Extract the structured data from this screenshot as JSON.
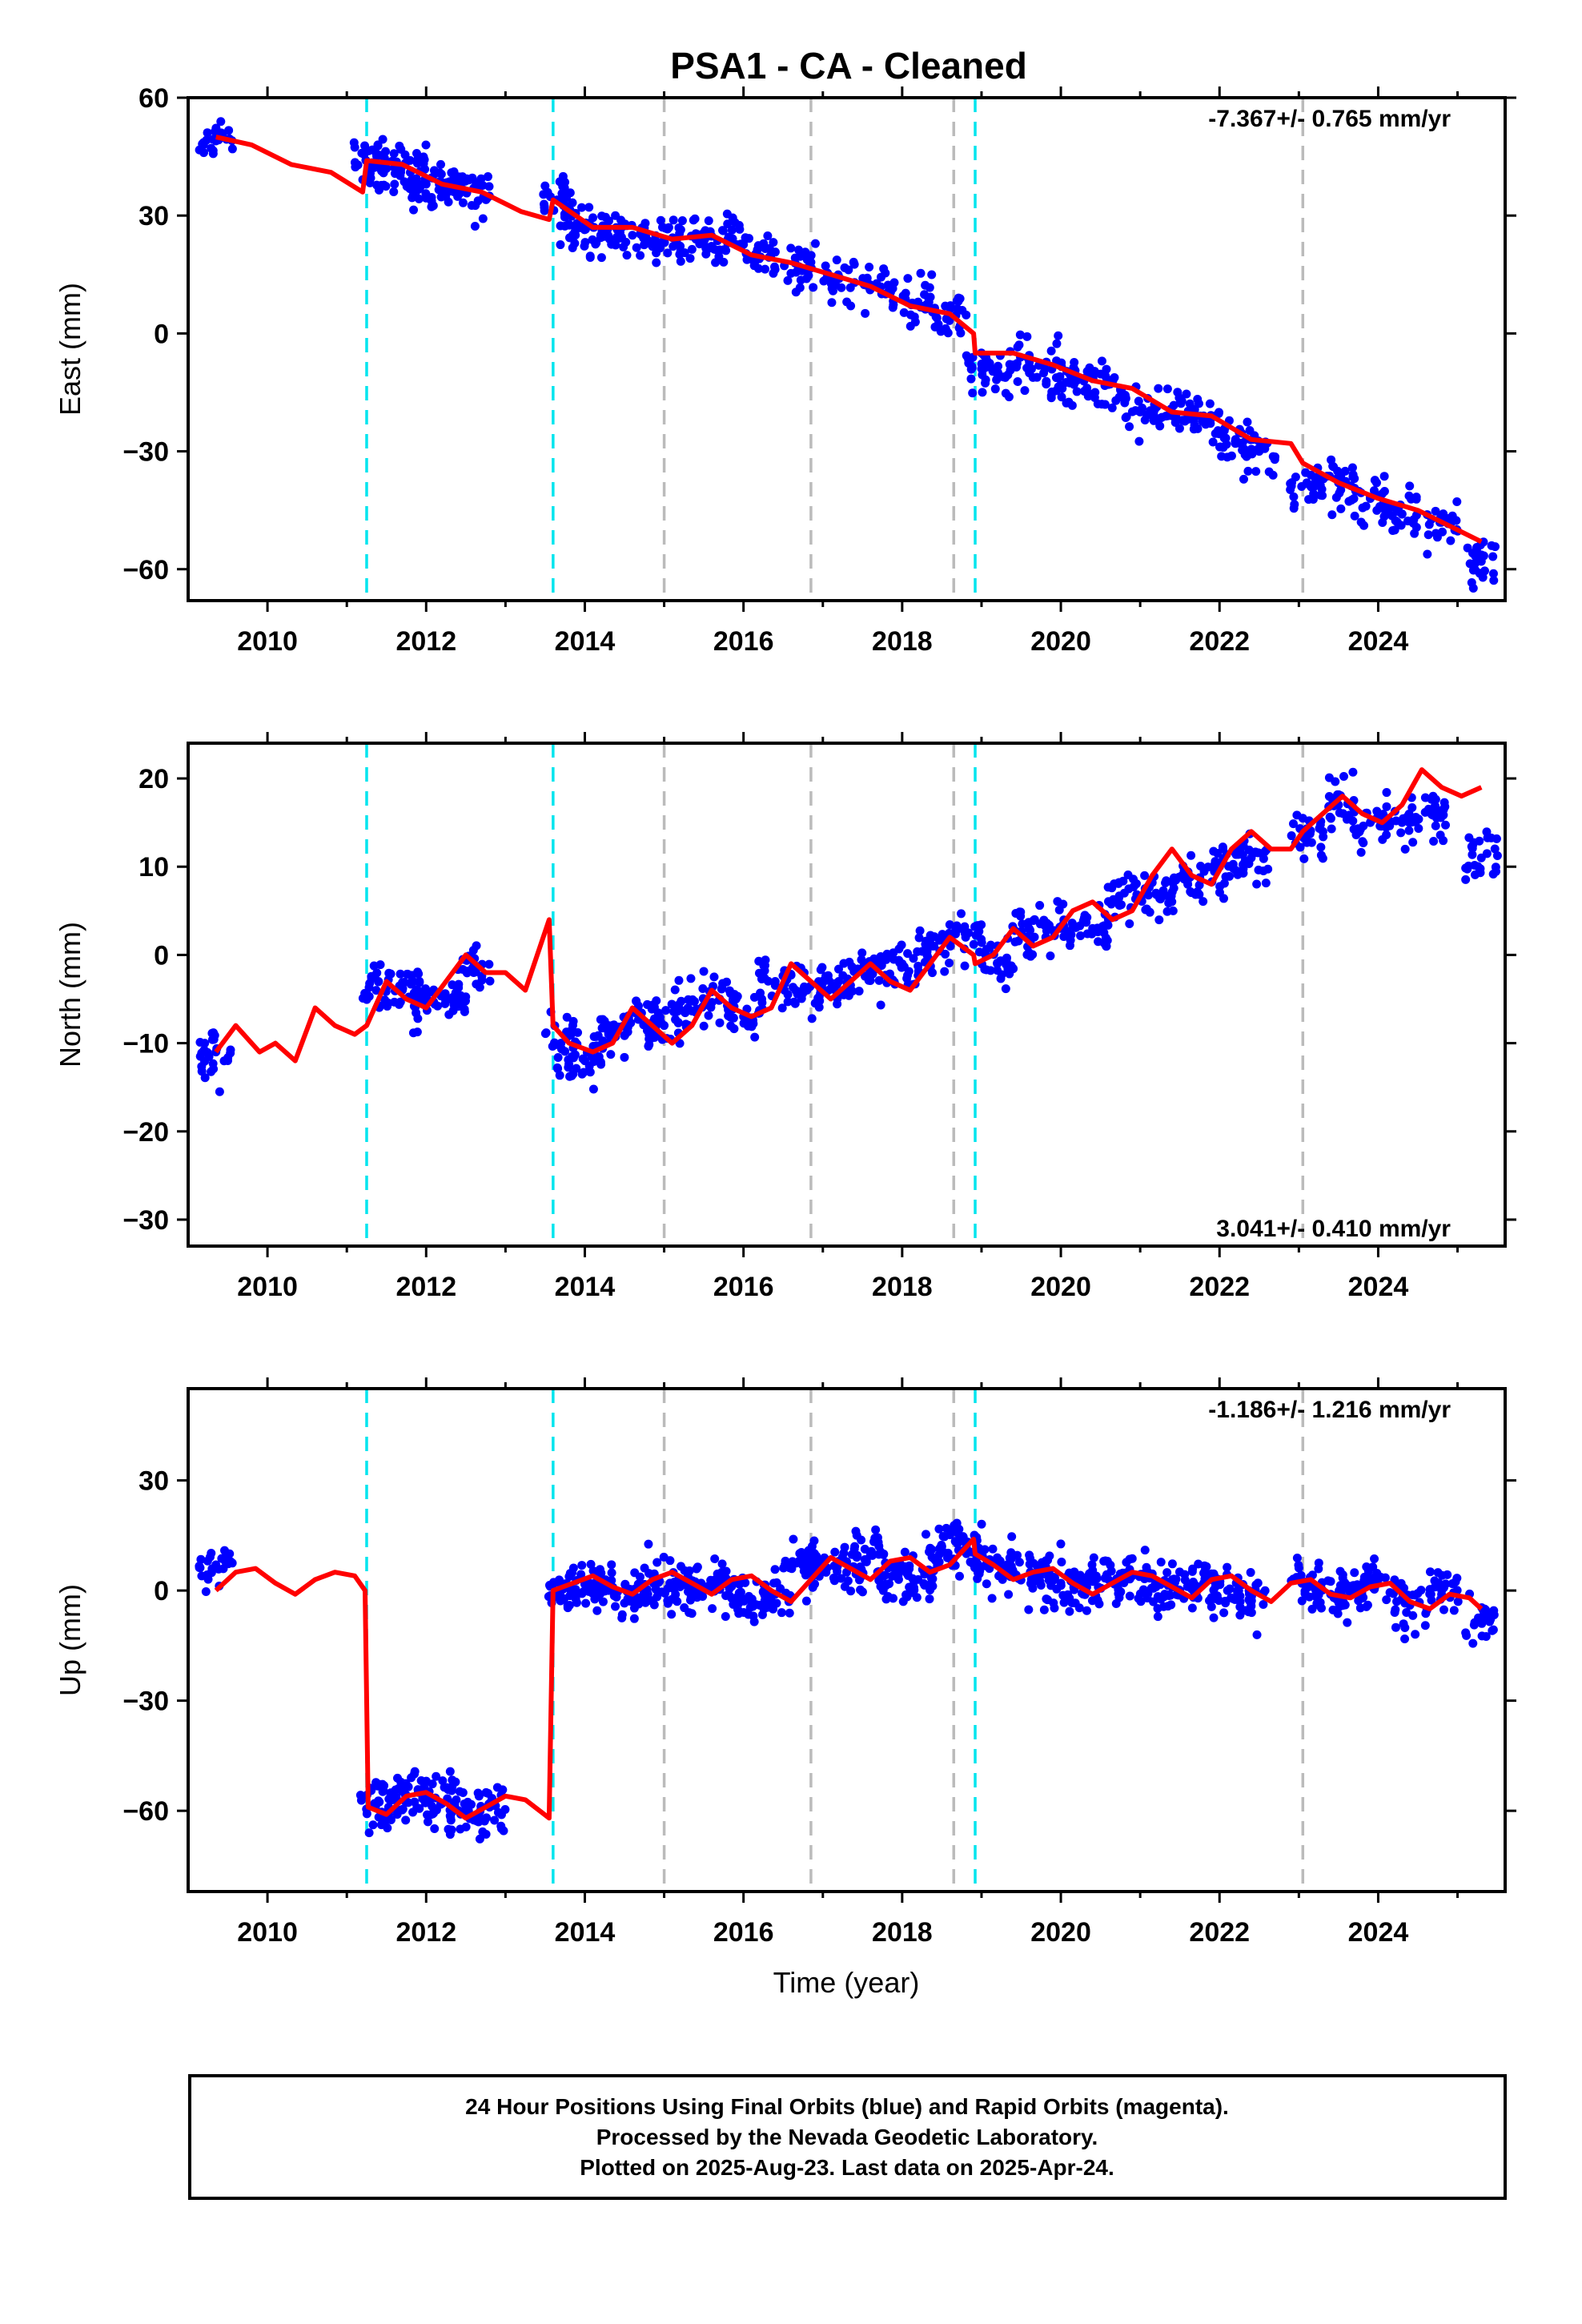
{
  "title": "PSA1  - CA - Cleaned",
  "xlabel": "Time (year)",
  "x_ticks": [
    2010,
    2012,
    2014,
    2016,
    2018,
    2020,
    2022,
    2024
  ],
  "xlim": [
    2009.0,
    2025.6
  ],
  "offsets": {
    "cyan": [
      2011.25,
      2013.6,
      2018.92
    ],
    "gray": [
      2015.0,
      2016.85,
      2018.65,
      2023.05
    ]
  },
  "colors": {
    "points": "#0000ff",
    "model": "#ff0000",
    "equipment_offset": "#00e5ee",
    "other_offset": "#bbbbbb"
  },
  "chart_data": [
    {
      "type": "scatter",
      "component": "east",
      "ylabel": "East (mm)",
      "ylim": [
        -68,
        60
      ],
      "y_ticks": [
        60,
        30,
        0,
        -30,
        -60
      ],
      "rate_text": "-7.367+/- 0.765 mm/yr",
      "rate_position": "top-right",
      "series": [
        {
          "kind": "points",
          "x": [
            2009.35,
            2011.3,
            2011.5,
            2011.8,
            2012.0,
            2012.3,
            2012.6,
            2013.65,
            2013.9,
            2014.2,
            2014.6,
            2015.0,
            2015.4,
            2015.8,
            2016.2,
            2016.7,
            2017.2,
            2017.7,
            2018.2,
            2018.6,
            2019.0,
            2019.4,
            2019.8,
            2020.2,
            2020.6,
            2021.0,
            2021.4,
            2021.8,
            2022.2,
            2022.5,
            2023.1,
            2023.5,
            2023.9,
            2024.3,
            2024.8,
            2025.3
          ],
          "y": [
            49,
            43,
            42,
            41,
            38,
            38,
            37,
            34,
            28,
            25,
            25,
            24,
            24,
            23,
            19,
            17,
            14,
            12,
            8,
            4,
            -9,
            -8,
            -9,
            -12,
            -13,
            -20,
            -20,
            -21,
            -28,
            -30,
            -38,
            -38,
            -42,
            -46,
            -48,
            -58
          ]
        },
        {
          "kind": "model",
          "x": [
            2009.35,
            2009.8,
            2010.3,
            2010.8,
            2011.2,
            2011.25,
            2011.7,
            2012.2,
            2012.7,
            2013.2,
            2013.55,
            2013.6,
            2014.1,
            2014.6,
            2015.1,
            2015.6,
            2016.1,
            2016.6,
            2017.1,
            2017.6,
            2018.1,
            2018.6,
            2018.9,
            2018.92,
            2019.4,
            2019.9,
            2020.4,
            2020.9,
            2021.4,
            2021.9,
            2022.4,
            2022.9,
            2023.05,
            2023.5,
            2024.0,
            2024.5,
            2025.0,
            2025.3
          ],
          "y": [
            50,
            48,
            43,
            41,
            36,
            44,
            43,
            38,
            36,
            31,
            29,
            34,
            27,
            27,
            24,
            25,
            20,
            18,
            15,
            12,
            7,
            5,
            0,
            -5,
            -5,
            -8,
            -12,
            -14,
            -20,
            -21,
            -27,
            -28,
            -33,
            -38,
            -42,
            -45,
            -50,
            -53
          ]
        }
      ]
    },
    {
      "type": "scatter",
      "component": "north",
      "ylabel": "North (mm)",
      "ylim": [
        -33,
        24
      ],
      "y_ticks": [
        20,
        10,
        0,
        -10,
        -20,
        -30
      ],
      "rate_text": "3.041+/- 0.410 mm/yr",
      "rate_position": "bottom-right",
      "series": [
        {
          "kind": "points",
          "x": [
            2009.35,
            2011.4,
            2011.7,
            2012.0,
            2012.3,
            2012.6,
            2013.7,
            2014.0,
            2014.3,
            2014.7,
            2015.0,
            2015.3,
            2015.7,
            2016.0,
            2016.4,
            2016.8,
            2017.2,
            2017.6,
            2018.0,
            2018.4,
            2018.8,
            2019.2,
            2019.6,
            2020.0,
            2020.4,
            2020.8,
            2021.2,
            2021.6,
            2022.0,
            2022.4,
            2023.1,
            2023.5,
            2023.9,
            2024.3,
            2024.7,
            2025.3
          ],
          "y": [
            -11,
            -3,
            -4,
            -5,
            -5,
            -2,
            -10,
            -12,
            -9,
            -7,
            -8,
            -6,
            -5,
            -7,
            -3,
            -4,
            -3,
            -2,
            -1,
            1,
            2,
            -1,
            3,
            3,
            3,
            7,
            7,
            8,
            10,
            11,
            14,
            17,
            15,
            15,
            16,
            11
          ]
        },
        {
          "kind": "model",
          "x": [
            2009.35,
            2009.6,
            2009.9,
            2010.1,
            2010.35,
            2010.6,
            2010.85,
            2011.1,
            2011.25,
            2011.5,
            2011.75,
            2012.0,
            2012.25,
            2012.5,
            2012.75,
            2013.0,
            2013.25,
            2013.55,
            2013.6,
            2013.8,
            2014.1,
            2014.35,
            2014.6,
            2014.85,
            2015.1,
            2015.35,
            2015.6,
            2015.85,
            2016.1,
            2016.35,
            2016.6,
            2016.85,
            2017.1,
            2017.35,
            2017.6,
            2017.85,
            2018.1,
            2018.35,
            2018.6,
            2018.9,
            2018.92,
            2019.15,
            2019.4,
            2019.65,
            2019.9,
            2020.15,
            2020.4,
            2020.65,
            2020.9,
            2021.15,
            2021.4,
            2021.65,
            2021.9,
            2022.15,
            2022.4,
            2022.65,
            2022.9,
            2023.05,
            2023.3,
            2023.55,
            2023.8,
            2024.05,
            2024.3,
            2024.55,
            2024.8,
            2025.05,
            2025.3
          ],
          "y": [
            -11,
            -8,
            -11,
            -10,
            -12,
            -6,
            -8,
            -9,
            -8,
            -3,
            -5,
            -6,
            -3,
            0,
            -2,
            -2,
            -4,
            4,
            -8,
            -10,
            -11,
            -10,
            -6,
            -8,
            -10,
            -8,
            -4,
            -6,
            -7,
            -6,
            -1,
            -3,
            -5,
            -3,
            -1,
            -3,
            -4,
            -1,
            2,
            0,
            -1,
            0,
            3,
            1,
            2,
            5,
            6,
            4,
            5,
            9,
            12,
            9,
            8,
            12,
            14,
            12,
            12,
            14,
            16,
            18,
            16,
            15,
            17,
            21,
            19,
            18,
            19
          ]
        }
      ]
    },
    {
      "type": "scatter",
      "component": "up",
      "ylabel": "Up (mm)",
      "ylim": [
        -82,
        55
      ],
      "y_ticks": [
        30,
        0,
        -30,
        -60
      ],
      "rate_text": "-1.186+/- 1.216 mm/yr",
      "rate_position": "top-right",
      "series": [
        {
          "kind": "points",
          "x": [
            2009.35,
            2011.35,
            2011.6,
            2011.9,
            2012.2,
            2012.5,
            2012.8,
            2013.7,
            2014.0,
            2014.3,
            2014.6,
            2014.9,
            2015.2,
            2015.5,
            2015.8,
            2016.1,
            2016.4,
            2016.7,
            2017.0,
            2017.3,
            2017.6,
            2017.9,
            2018.2,
            2018.5,
            2018.8,
            2019.1,
            2019.4,
            2019.7,
            2020.0,
            2020.3,
            2020.6,
            2020.9,
            2021.2,
            2021.5,
            2021.8,
            2022.1,
            2022.4,
            2023.1,
            2023.4,
            2023.7,
            2024.0,
            2024.4,
            2024.8,
            2025.3
          ],
          "y": [
            7,
            -58,
            -57,
            -55,
            -58,
            -60,
            -59,
            0,
            2,
            0,
            -2,
            3,
            1,
            0,
            2,
            -3,
            -1,
            8,
            7,
            5,
            10,
            6,
            3,
            12,
            13,
            6,
            5,
            3,
            2,
            0,
            3,
            4,
            1,
            0,
            2,
            0,
            -3,
            2,
            -1,
            0,
            3,
            -4,
            0,
            -8
          ]
        },
        {
          "kind": "model",
          "x": [
            2009.35,
            2009.6,
            2009.85,
            2010.1,
            2010.35,
            2010.6,
            2010.85,
            2011.1,
            2011.23,
            2011.27,
            2011.5,
            2011.75,
            2012.0,
            2012.25,
            2012.5,
            2012.75,
            2013.0,
            2013.25,
            2013.55,
            2013.6,
            2013.85,
            2014.1,
            2014.35,
            2014.6,
            2014.85,
            2015.1,
            2015.35,
            2015.6,
            2015.85,
            2016.1,
            2016.35,
            2016.6,
            2016.85,
            2017.1,
            2017.35,
            2017.6,
            2017.85,
            2018.1,
            2018.35,
            2018.6,
            2018.9,
            2018.92,
            2019.15,
            2019.4,
            2019.65,
            2019.9,
            2020.15,
            2020.4,
            2020.65,
            2020.9,
            2021.15,
            2021.4,
            2021.65,
            2021.9,
            2022.15,
            2022.4,
            2022.65,
            2022.9,
            2023.15,
            2023.4,
            2023.65,
            2023.9,
            2024.15,
            2024.4,
            2024.65,
            2024.9,
            2025.15,
            2025.3
          ],
          "y": [
            0,
            5,
            6,
            2,
            -1,
            3,
            5,
            4,
            0,
            -59,
            -61,
            -56,
            -55,
            -58,
            -62,
            -59,
            -56,
            -57,
            -62,
            0,
            2,
            4,
            1,
            -1,
            3,
            5,
            2,
            -1,
            3,
            4,
            0,
            -3,
            3,
            9,
            6,
            3,
            8,
            9,
            5,
            7,
            14,
            10,
            7,
            3,
            5,
            6,
            2,
            -1,
            2,
            5,
            4,
            1,
            -2,
            3,
            4,
            0,
            -3,
            2,
            3,
            -1,
            -2,
            1,
            2,
            -3,
            -5,
            -1,
            -2,
            -5
          ]
        }
      ]
    }
  ],
  "footer": {
    "line1": "24 Hour Positions Using Final Orbits (blue) and Rapid Orbits (magenta).",
    "line2": "Processed by the Nevada Geodetic Laboratory.",
    "line3": "Plotted on 2025-Aug-23. Last data on 2025-Apr-24."
  }
}
